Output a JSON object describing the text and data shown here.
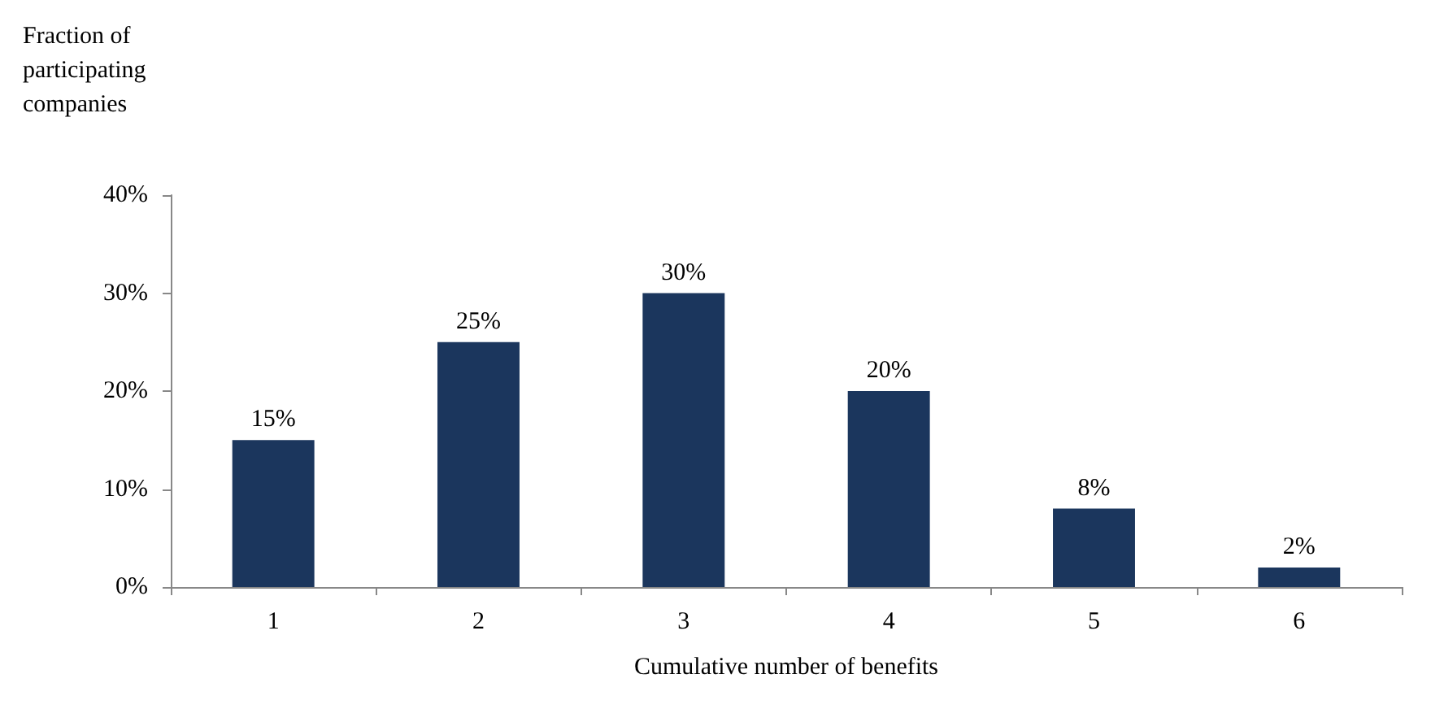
{
  "chart_data": {
    "type": "bar",
    "ylabel": "Fraction of participating companies",
    "xlabel": "Cumulative number of benefits",
    "categories": [
      "1",
      "2",
      "3",
      "4",
      "5",
      "6"
    ],
    "values": [
      15,
      25,
      30,
      20,
      8,
      2
    ],
    "value_labels": [
      "15%",
      "25%",
      "30%",
      "20%",
      "8%",
      "2%"
    ],
    "color": "#1b365d",
    "ylim": [
      0,
      40
    ],
    "yticks": [
      {
        "value": 0,
        "label": "0%"
      },
      {
        "value": 10,
        "label": "10%"
      },
      {
        "value": 20,
        "label": "20%"
      },
      {
        "value": 30,
        "label": "30%"
      },
      {
        "value": 40,
        "label": "40%"
      }
    ],
    "grid": false
  }
}
